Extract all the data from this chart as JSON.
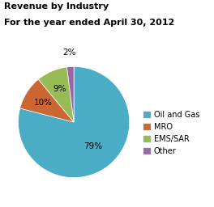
{
  "title_line1": "Revenue by Industry",
  "title_line2": "For the year ended April 30, 2012",
  "labels": [
    "Oil and Gas",
    "MRO",
    "EMS/SAR",
    "Other"
  ],
  "values": [
    79,
    10,
    9,
    2
  ],
  "colors": [
    "#4bacc6",
    "#cc6633",
    "#99bb55",
    "#9966aa"
  ],
  "pct_labels": [
    "79%",
    "10%",
    "9%",
    "2%"
  ],
  "startangle": 90,
  "legend_labels": [
    "Oil and Gas",
    "MRO",
    "EMS/SAR",
    "Other"
  ],
  "title_fontsize": 8,
  "pct_fontsize": 7.5,
  "legend_fontsize": 7
}
